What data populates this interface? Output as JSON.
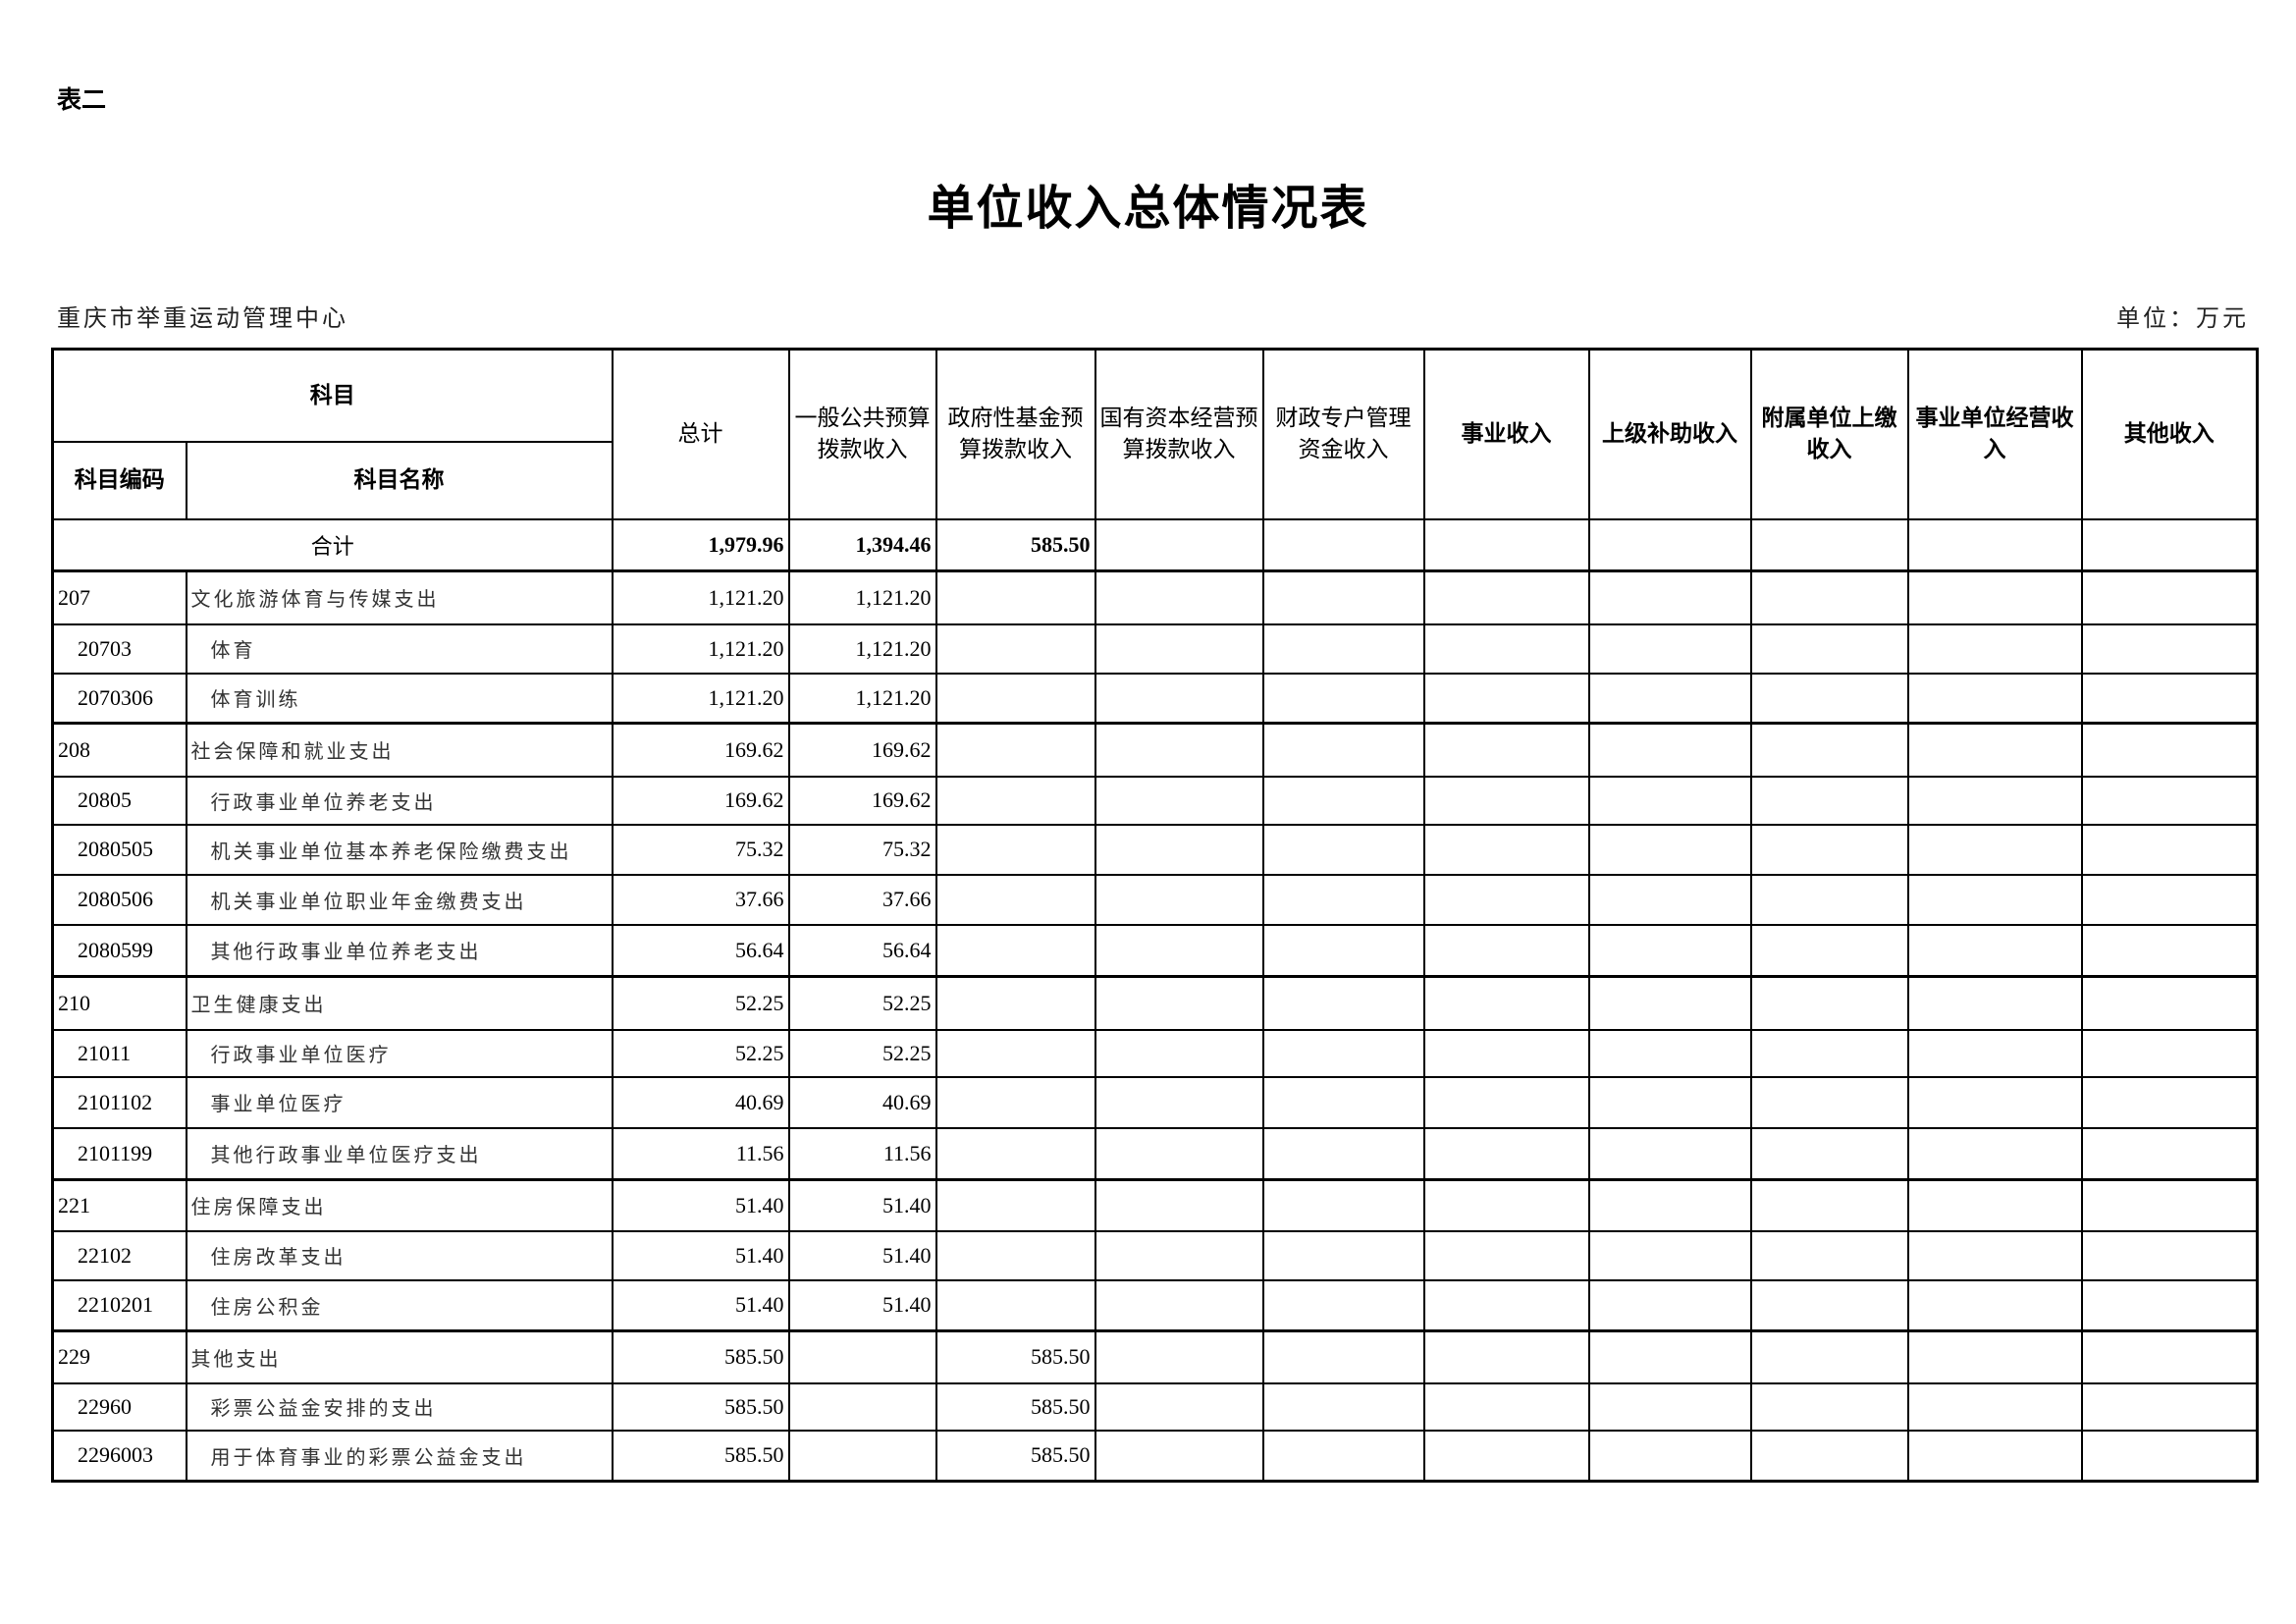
{
  "doc": {
    "tag": "表二",
    "title": "单位收入总体情况表",
    "org": "重庆市举重运动管理中心",
    "unit": "单位：万元"
  },
  "header": {
    "subject": "科目",
    "code": "科目编码",
    "name": "科目名称",
    "columns": [
      "总计",
      "一般公共预算拨款收入",
      "政府性基金预算拨款收入",
      "国有资本经营预算拨款收入",
      "财政专户管理资金收入",
      "事业收入",
      "上级补助收入",
      "附属单位上缴收入",
      "事业单位经营收入",
      "其他收入"
    ]
  },
  "total": {
    "label": "合计",
    "values": [
      "1,979.96",
      "1,394.46",
      "585.50",
      "",
      "",
      "",
      "",
      "",
      "",
      ""
    ]
  },
  "rows": [
    {
      "code": "207",
      "name": "文化旅游体育与传媒支出",
      "level": 1,
      "values": [
        "1,121.20",
        "1,121.20",
        ""
      ]
    },
    {
      "code": "20703",
      "name": "体育",
      "level": 2,
      "values": [
        "1,121.20",
        "1,121.20",
        ""
      ]
    },
    {
      "code": "2070306",
      "name": "体育训练",
      "level": 3,
      "values": [
        "1,121.20",
        "1,121.20",
        ""
      ]
    },
    {
      "code": "208",
      "name": "社会保障和就业支出",
      "level": 1,
      "values": [
        "169.62",
        "169.62",
        ""
      ]
    },
    {
      "code": "20805",
      "name": "行政事业单位养老支出",
      "level": 2,
      "values": [
        "169.62",
        "169.62",
        ""
      ]
    },
    {
      "code": "2080505",
      "name": "机关事业单位基本养老保险缴费支出",
      "level": 3,
      "values": [
        "75.32",
        "75.32",
        ""
      ]
    },
    {
      "code": "2080506",
      "name": "机关事业单位职业年金缴费支出",
      "level": 3,
      "values": [
        "37.66",
        "37.66",
        ""
      ]
    },
    {
      "code": "2080599",
      "name": "其他行政事业单位养老支出",
      "level": 3,
      "values": [
        "56.64",
        "56.64",
        ""
      ]
    },
    {
      "code": "210",
      "name": "卫生健康支出",
      "level": 1,
      "values": [
        "52.25",
        "52.25",
        ""
      ]
    },
    {
      "code": "21011",
      "name": "行政事业单位医疗",
      "level": 2,
      "values": [
        "52.25",
        "52.25",
        ""
      ]
    },
    {
      "code": "2101102",
      "name": "事业单位医疗",
      "level": 3,
      "values": [
        "40.69",
        "40.69",
        ""
      ]
    },
    {
      "code": "2101199",
      "name": "其他行政事业单位医疗支出",
      "level": 3,
      "values": [
        "11.56",
        "11.56",
        ""
      ]
    },
    {
      "code": "221",
      "name": "住房保障支出",
      "level": 1,
      "values": [
        "51.40",
        "51.40",
        ""
      ]
    },
    {
      "code": "22102",
      "name": "住房改革支出",
      "level": 2,
      "values": [
        "51.40",
        "51.40",
        ""
      ]
    },
    {
      "code": "2210201",
      "name": "住房公积金",
      "level": 3,
      "values": [
        "51.40",
        "51.40",
        ""
      ]
    },
    {
      "code": "229",
      "name": "其他支出",
      "level": 1,
      "values": [
        "585.50",
        "",
        "585.50"
      ]
    },
    {
      "code": "22960",
      "name": "彩票公益金安排的支出",
      "level": 2,
      "values": [
        "585.50",
        "",
        "585.50"
      ]
    },
    {
      "code": "2296003",
      "name": "用于体育事业的彩票公益金支出",
      "level": 3,
      "values": [
        "585.50",
        "",
        "585.50"
      ]
    }
  ]
}
